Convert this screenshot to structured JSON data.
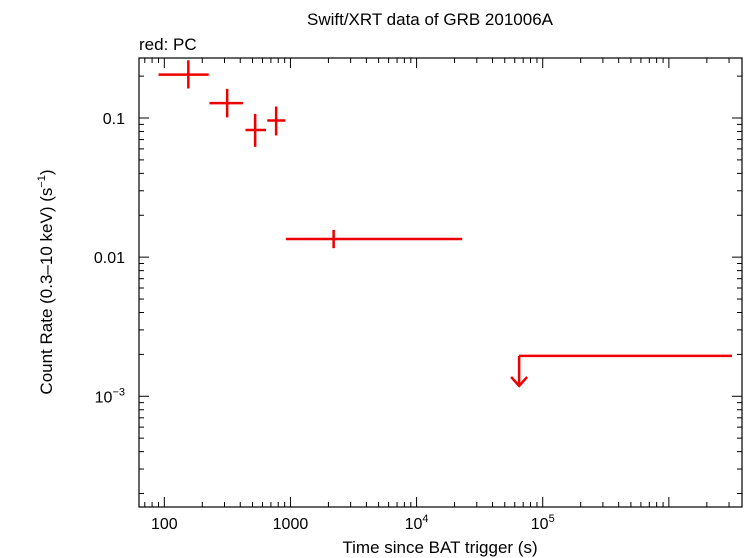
{
  "chart_data": {
    "type": "scatter",
    "title": "Swift/XRT data of GRB 201006A",
    "subtitle": "red: PC",
    "xlabel": "Time since BAT trigger (s)",
    "ylabel_main": "Count Rate (0.3–10 keV) (s",
    "ylabel_sup": "−1",
    "ylabel_close": ")",
    "xscale": "log",
    "yscale": "log",
    "xlim": [
      63,
      3800000
    ],
    "ylim": [
      0.00016,
      0.27
    ],
    "xticks": [
      {
        "value": 100,
        "base": "100",
        "sup": ""
      },
      {
        "value": 1000,
        "base": "1000",
        "sup": ""
      },
      {
        "value": 10000,
        "base": "10",
        "sup": "4"
      },
      {
        "value": 100000,
        "base": "10",
        "sup": "5"
      }
    ],
    "yticks": [
      {
        "value": 0.1,
        "base": "0.1",
        "sup": ""
      },
      {
        "value": 0.01,
        "base": "0.01",
        "sup": ""
      },
      {
        "value": 0.001,
        "base": "10",
        "sup": "−3"
      }
    ],
    "grid": false,
    "series": [
      {
        "color": "#ee0000",
        "points": [
          {
            "x": 155,
            "xlo": 90,
            "xhi": 225,
            "y": 0.205,
            "ylo": 0.163,
            "yhi": 0.26
          },
          {
            "x": 315,
            "xlo": 228,
            "xhi": 420,
            "y": 0.128,
            "ylo": 0.101,
            "yhi": 0.162
          },
          {
            "x": 525,
            "xlo": 440,
            "xhi": 640,
            "y": 0.082,
            "ylo": 0.062,
            "yhi": 0.107
          },
          {
            "x": 770,
            "xlo": 655,
            "xhi": 910,
            "y": 0.096,
            "ylo": 0.075,
            "yhi": 0.121
          },
          {
            "x": 2200,
            "xlo": 920,
            "xhi": 23000,
            "y": 0.0135,
            "ylo": 0.0116,
            "yhi": 0.0157
          }
        ],
        "upper_limits": [
          {
            "x": 65000,
            "xlo": 65000,
            "xhi": 3500000,
            "y": 0.00195
          }
        ]
      }
    ]
  }
}
